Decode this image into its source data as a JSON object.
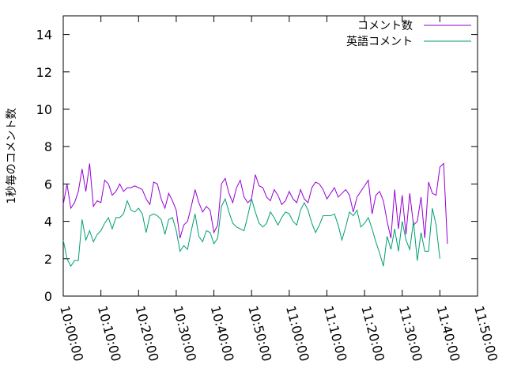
{
  "chart_data": {
    "type": "line",
    "title": "",
    "xlabel": "",
    "ylabel": "1秒毎のコメント数",
    "xlim": [
      "10:00:00",
      "11:50:00"
    ],
    "ylim": [
      0,
      15
    ],
    "grid": false,
    "legend_position": "top-right",
    "x_ticks": [
      "10:00:00",
      "10:10:00",
      "10:20:00",
      "10:30:00",
      "10:40:00",
      "10:50:00",
      "11:00:00",
      "11:10:00",
      "11:20:00",
      "11:30:00",
      "11:40:00",
      "11:50:00"
    ],
    "y_ticks": [
      0,
      2,
      4,
      6,
      8,
      10,
      12,
      14
    ],
    "series": [
      {
        "name": "コメント数",
        "color": "#9400d3",
        "values": [
          [
            "10:00:00",
            4.9
          ],
          [
            "10:01:00",
            6.0
          ],
          [
            "10:02:00",
            4.7
          ],
          [
            "10:03:00",
            5.0
          ],
          [
            "10:04:00",
            5.6
          ],
          [
            "10:05:00",
            6.8
          ],
          [
            "10:06:00",
            5.6
          ],
          [
            "10:07:00",
            7.1
          ],
          [
            "10:08:00",
            4.8
          ],
          [
            "10:09:00",
            5.1
          ],
          [
            "10:10:00",
            5.0
          ],
          [
            "10:11:00",
            6.2
          ],
          [
            "10:12:00",
            6.0
          ],
          [
            "10:13:00",
            5.4
          ],
          [
            "10:14:00",
            5.6
          ],
          [
            "10:15:00",
            6.0
          ],
          [
            "10:16:00",
            5.6
          ],
          [
            "10:17:00",
            5.8
          ],
          [
            "10:18:00",
            5.8
          ],
          [
            "10:19:00",
            5.9
          ],
          [
            "10:20:00",
            5.8
          ],
          [
            "10:21:00",
            5.7
          ],
          [
            "10:22:00",
            5.2
          ],
          [
            "10:23:00",
            4.9
          ],
          [
            "10:24:00",
            6.1
          ],
          [
            "10:25:00",
            6.0
          ],
          [
            "10:26:00",
            5.2
          ],
          [
            "10:27:00",
            4.7
          ],
          [
            "10:28:00",
            5.5
          ],
          [
            "10:29:00",
            5.1
          ],
          [
            "10:30:00",
            4.6
          ],
          [
            "10:31:00",
            3.1
          ],
          [
            "10:32:00",
            3.8
          ],
          [
            "10:33:00",
            4.0
          ],
          [
            "10:34:00",
            4.8
          ],
          [
            "10:35:00",
            5.7
          ],
          [
            "10:36:00",
            5.0
          ],
          [
            "10:37:00",
            4.5
          ],
          [
            "10:38:00",
            4.8
          ],
          [
            "10:39:00",
            4.6
          ],
          [
            "10:40:00",
            3.4
          ],
          [
            "10:41:00",
            3.8
          ],
          [
            "10:42:00",
            6.0
          ],
          [
            "10:43:00",
            6.3
          ],
          [
            "10:44:00",
            5.5
          ],
          [
            "10:45:00",
            5.0
          ],
          [
            "10:46:00",
            5.8
          ],
          [
            "10:47:00",
            6.2
          ],
          [
            "10:48:00",
            5.3
          ],
          [
            "10:49:00",
            5.0
          ],
          [
            "10:50:00",
            5.2
          ],
          [
            "10:51:00",
            6.5
          ],
          [
            "10:52:00",
            5.9
          ],
          [
            "10:53:00",
            5.8
          ],
          [
            "10:54:00",
            5.3
          ],
          [
            "10:55:00",
            5.1
          ],
          [
            "10:56:00",
            5.7
          ],
          [
            "10:57:00",
            5.4
          ],
          [
            "10:58:00",
            4.9
          ],
          [
            "10:59:00",
            5.1
          ],
          [
            "11:00:00",
            5.6
          ],
          [
            "11:01:00",
            5.2
          ],
          [
            "11:02:00",
            5.0
          ],
          [
            "11:03:00",
            5.7
          ],
          [
            "11:04:00",
            5.2
          ],
          [
            "11:05:00",
            5.0
          ],
          [
            "11:06:00",
            5.8
          ],
          [
            "11:07:00",
            6.1
          ],
          [
            "11:08:00",
            6.0
          ],
          [
            "11:09:00",
            5.7
          ],
          [
            "11:10:00",
            5.2
          ],
          [
            "11:11:00",
            5.5
          ],
          [
            "11:12:00",
            5.8
          ],
          [
            "11:13:00",
            5.3
          ],
          [
            "11:14:00",
            5.5
          ],
          [
            "11:15:00",
            5.7
          ],
          [
            "11:16:00",
            5.4
          ],
          [
            "11:17:00",
            4.5
          ],
          [
            "11:18:00",
            5.3
          ],
          [
            "11:19:00",
            5.6
          ],
          [
            "11:20:00",
            5.9
          ],
          [
            "11:21:00",
            6.2
          ],
          [
            "11:22:00",
            4.4
          ],
          [
            "11:23:00",
            5.4
          ],
          [
            "11:24:00",
            5.6
          ],
          [
            "11:25:00",
            5.1
          ],
          [
            "11:26:00",
            4.0
          ],
          [
            "11:27:00",
            3.1
          ],
          [
            "11:28:00",
            5.7
          ],
          [
            "11:29:00",
            3.6
          ],
          [
            "11:30:00",
            5.4
          ],
          [
            "11:31:00",
            3.3
          ],
          [
            "11:32:00",
            5.5
          ],
          [
            "11:33:00",
            3.8
          ],
          [
            "11:34:00",
            4.0
          ],
          [
            "11:35:00",
            5.3
          ],
          [
            "11:36:00",
            3.1
          ],
          [
            "11:37:00",
            6.1
          ],
          [
            "11:38:00",
            5.5
          ],
          [
            "11:39:00",
            5.4
          ],
          [
            "11:40:00",
            6.9
          ],
          [
            "11:41:00",
            7.1
          ],
          [
            "11:42:00",
            2.8
          ]
        ]
      },
      {
        "name": "英語コメント",
        "color": "#009e73",
        "values": [
          [
            "10:00:00",
            3.0
          ],
          [
            "10:01:00",
            2.0
          ],
          [
            "10:02:00",
            1.6
          ],
          [
            "10:03:00",
            1.9
          ],
          [
            "10:04:00",
            1.9
          ],
          [
            "10:05:00",
            4.1
          ],
          [
            "10:06:00",
            3.0
          ],
          [
            "10:07:00",
            3.5
          ],
          [
            "10:08:00",
            2.9
          ],
          [
            "10:09:00",
            3.3
          ],
          [
            "10:10:00",
            3.5
          ],
          [
            "10:11:00",
            3.9
          ],
          [
            "10:12:00",
            4.2
          ],
          [
            "10:13:00",
            3.6
          ],
          [
            "10:14:00",
            4.2
          ],
          [
            "10:15:00",
            4.2
          ],
          [
            "10:16:00",
            4.4
          ],
          [
            "10:17:00",
            5.1
          ],
          [
            "10:18:00",
            4.6
          ],
          [
            "10:19:00",
            4.5
          ],
          [
            "10:20:00",
            4.7
          ],
          [
            "10:21:00",
            4.4
          ],
          [
            "10:22:00",
            3.4
          ],
          [
            "10:23:00",
            4.3
          ],
          [
            "10:24:00",
            4.4
          ],
          [
            "10:25:00",
            4.3
          ],
          [
            "10:26:00",
            4.1
          ],
          [
            "10:27:00",
            3.3
          ],
          [
            "10:28:00",
            4.1
          ],
          [
            "10:29:00",
            4.2
          ],
          [
            "10:30:00",
            3.5
          ],
          [
            "10:31:00",
            2.4
          ],
          [
            "10:32:00",
            2.7
          ],
          [
            "10:33:00",
            2.5
          ],
          [
            "10:34:00",
            3.5
          ],
          [
            "10:35:00",
            4.4
          ],
          [
            "10:36:00",
            3.2
          ],
          [
            "10:37:00",
            2.9
          ],
          [
            "10:38:00",
            3.5
          ],
          [
            "10:39:00",
            3.4
          ],
          [
            "10:40:00",
            2.8
          ],
          [
            "10:41:00",
            3.1
          ],
          [
            "10:42:00",
            4.8
          ],
          [
            "10:43:00",
            5.2
          ],
          [
            "10:44:00",
            4.5
          ],
          [
            "10:45:00",
            3.9
          ],
          [
            "10:46:00",
            3.7
          ],
          [
            "10:47:00",
            3.6
          ],
          [
            "10:48:00",
            3.5
          ],
          [
            "10:49:00",
            4.3
          ],
          [
            "10:50:00",
            5.2
          ],
          [
            "10:51:00",
            4.5
          ],
          [
            "10:52:00",
            3.9
          ],
          [
            "10:53:00",
            3.7
          ],
          [
            "10:54:00",
            3.9
          ],
          [
            "10:55:00",
            4.5
          ],
          [
            "10:56:00",
            4.2
          ],
          [
            "10:57:00",
            3.8
          ],
          [
            "10:58:00",
            4.2
          ],
          [
            "10:59:00",
            4.5
          ],
          [
            "11:00:00",
            4.4
          ],
          [
            "11:01:00",
            4.0
          ],
          [
            "11:02:00",
            3.8
          ],
          [
            "11:03:00",
            4.6
          ],
          [
            "11:04:00",
            5.0
          ],
          [
            "11:05:00",
            4.6
          ],
          [
            "11:06:00",
            3.9
          ],
          [
            "11:07:00",
            3.4
          ],
          [
            "11:08:00",
            3.8
          ],
          [
            "11:09:00",
            4.3
          ],
          [
            "11:10:00",
            4.3
          ],
          [
            "11:11:00",
            4.3
          ],
          [
            "11:12:00",
            4.4
          ],
          [
            "11:13:00",
            3.8
          ],
          [
            "11:14:00",
            3.0
          ],
          [
            "11:15:00",
            3.7
          ],
          [
            "11:16:00",
            4.5
          ],
          [
            "11:17:00",
            4.3
          ],
          [
            "11:18:00",
            4.6
          ],
          [
            "11:19:00",
            3.7
          ],
          [
            "11:20:00",
            3.9
          ],
          [
            "11:21:00",
            4.2
          ],
          [
            "11:22:00",
            3.6
          ],
          [
            "11:23:00",
            2.9
          ],
          [
            "11:24:00",
            2.3
          ],
          [
            "11:25:00",
            1.6
          ],
          [
            "11:26:00",
            3.2
          ],
          [
            "11:27:00",
            2.5
          ],
          [
            "11:28:00",
            3.6
          ],
          [
            "11:29:00",
            2.4
          ],
          [
            "11:30:00",
            4.0
          ],
          [
            "11:31:00",
            3.0
          ],
          [
            "11:32:00",
            2.5
          ],
          [
            "11:33:00",
            4.0
          ],
          [
            "11:34:00",
            1.9
          ],
          [
            "11:35:00",
            3.4
          ],
          [
            "11:36:00",
            2.4
          ],
          [
            "11:37:00",
            2.4
          ],
          [
            "11:38:00",
            4.7
          ],
          [
            "11:39:00",
            3.8
          ],
          [
            "11:40:00",
            2.0
          ]
        ]
      }
    ]
  }
}
